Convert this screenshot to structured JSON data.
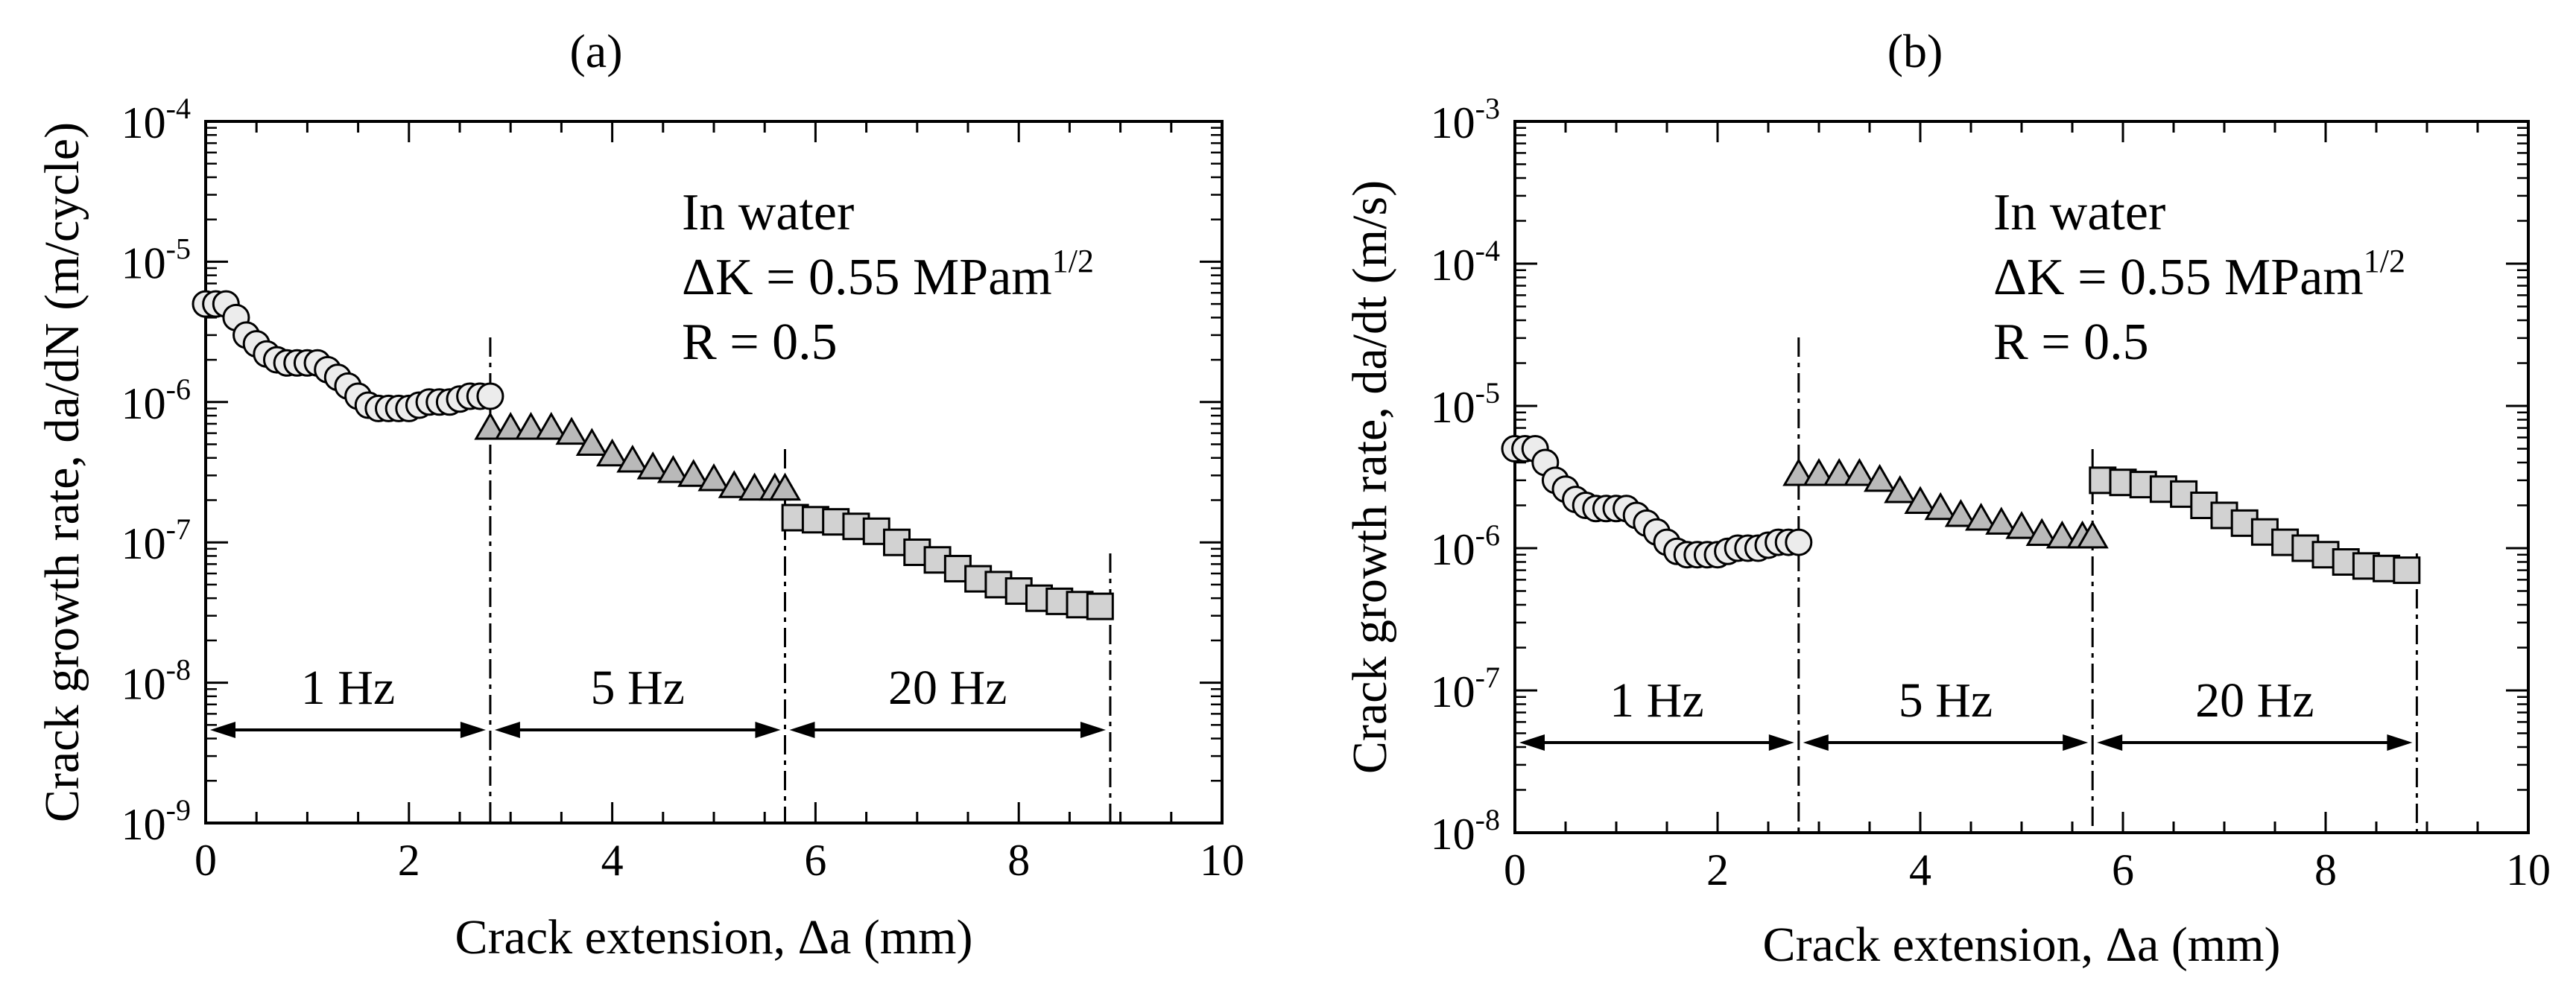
{
  "chart_data": [
    {
      "type": "scatter",
      "panel": "(a)",
      "title": "(a)",
      "xlabel": "Crack extension, Δa (mm)",
      "ylabel": "Crack growth rate, da/dN (m/cycle)",
      "x_ticks": [
        0,
        2,
        4,
        6,
        8,
        10
      ],
      "xlim": [
        0,
        10
      ],
      "ylim_log10": [
        -9,
        -4
      ],
      "y_tick_exponents": [
        -9,
        -8,
        -7,
        -6,
        -5,
        -4
      ],
      "annotation": [
        "In water",
        "ΔK = 0.55 MPam",
        "1/2",
        "R = 0.5"
      ],
      "boundaries": [
        2.8,
        5.7,
        8.9
      ],
      "frequency_labels": [
        {
          "label": "1 Hz",
          "from": 0,
          "to": 2.8
        },
        {
          "label": "5 Hz",
          "from": 2.8,
          "to": 5.7
        },
        {
          "label": "20 Hz",
          "from": 5.7,
          "to": 8.9
        }
      ],
      "series": [
        {
          "name": "1 Hz",
          "marker": "circle",
          "x": [
            0,
            0.1,
            0.2,
            0.3,
            0.4,
            0.5,
            0.6,
            0.7,
            0.8,
            0.9,
            1.0,
            1.1,
            1.2,
            1.3,
            1.4,
            1.5,
            1.6,
            1.7,
            1.8,
            1.9,
            2.0,
            2.1,
            2.2,
            2.3,
            2.4,
            2.5,
            2.6,
            2.7,
            2.8
          ],
          "y": [
            5e-06,
            5e-06,
            5e-06,
            4e-06,
            3e-06,
            2.6e-06,
            2.2e-06,
            2e-06,
            1.9e-06,
            1.9e-06,
            1.9e-06,
            1.9e-06,
            1.7e-06,
            1.5e-06,
            1.3e-06,
            1.1e-06,
            9.5e-07,
            9e-07,
            9e-07,
            9e-07,
            9e-07,
            9.5e-07,
            1e-06,
            1e-06,
            1e-06,
            1.05e-06,
            1.1e-06,
            1.1e-06,
            1.1e-06
          ]
        },
        {
          "name": "5 Hz",
          "marker": "triangle",
          "x": [
            2.8,
            3.0,
            3.2,
            3.4,
            3.6,
            3.8,
            4.0,
            4.2,
            4.4,
            4.6,
            4.8,
            5.0,
            5.2,
            5.4,
            5.6,
            5.7
          ],
          "y": [
            6.5e-07,
            6.5e-07,
            6.5e-07,
            6.5e-07,
            6e-07,
            5e-07,
            4.2e-07,
            3.8e-07,
            3.4e-07,
            3.2e-07,
            3e-07,
            2.8e-07,
            2.5e-07,
            2.4e-07,
            2.4e-07,
            2.4e-07
          ]
        },
        {
          "name": "20 Hz",
          "marker": "square",
          "x": [
            5.8,
            6.0,
            6.2,
            6.4,
            6.6,
            6.8,
            7.0,
            7.2,
            7.4,
            7.6,
            7.8,
            8.0,
            8.2,
            8.4,
            8.6,
            8.8
          ],
          "y": [
            1.5e-07,
            1.45e-07,
            1.4e-07,
            1.3e-07,
            1.2e-07,
            1e-07,
            8.5e-08,
            7.5e-08,
            6.5e-08,
            5.5e-08,
            5e-08,
            4.5e-08,
            4e-08,
            3.8e-08,
            3.6e-08,
            3.5e-08
          ]
        }
      ]
    },
    {
      "type": "scatter",
      "panel": "(b)",
      "title": "(b)",
      "xlabel": "Crack extension, Δa (mm)",
      "ylabel": "Crack growth rate, da/dt (m/s)",
      "x_ticks": [
        0,
        2,
        4,
        6,
        8,
        10
      ],
      "xlim": [
        0,
        10
      ],
      "ylim_log10": [
        -8,
        -3
      ],
      "y_tick_exponents": [
        -8,
        -7,
        -6,
        -5,
        -4,
        -3
      ],
      "annotation": [
        "In water",
        "ΔK = 0.55 MPam",
        "1/2",
        "R = 0.5"
      ],
      "boundaries": [
        2.8,
        5.7,
        8.9
      ],
      "frequency_labels": [
        {
          "label": "1 Hz",
          "from": 0,
          "to": 2.8
        },
        {
          "label": "5 Hz",
          "from": 2.8,
          "to": 5.7
        },
        {
          "label": "20 Hz",
          "from": 5.7,
          "to": 8.9
        }
      ],
      "series": [
        {
          "name": "1 Hz",
          "marker": "circle",
          "x": [
            0,
            0.1,
            0.2,
            0.3,
            0.4,
            0.5,
            0.6,
            0.7,
            0.8,
            0.9,
            1.0,
            1.1,
            1.2,
            1.3,
            1.4,
            1.5,
            1.6,
            1.7,
            1.8,
            1.9,
            2.0,
            2.1,
            2.2,
            2.3,
            2.4,
            2.5,
            2.6,
            2.7,
            2.8
          ],
          "y": [
            5e-06,
            5e-06,
            5e-06,
            4e-06,
            3e-06,
            2.6e-06,
            2.2e-06,
            2e-06,
            1.9e-06,
            1.9e-06,
            1.9e-06,
            1.9e-06,
            1.7e-06,
            1.5e-06,
            1.3e-06,
            1.1e-06,
            9.5e-07,
            9e-07,
            9e-07,
            9e-07,
            9e-07,
            9.5e-07,
            1e-06,
            1e-06,
            1e-06,
            1.05e-06,
            1.1e-06,
            1.1e-06,
            1.1e-06
          ]
        },
        {
          "name": "5 Hz",
          "marker": "triangle",
          "x": [
            2.8,
            3.0,
            3.2,
            3.4,
            3.6,
            3.8,
            4.0,
            4.2,
            4.4,
            4.6,
            4.8,
            5.0,
            5.2,
            5.4,
            5.6,
            5.7
          ],
          "y": [
            3.3e-06,
            3.3e-06,
            3.3e-06,
            3.3e-06,
            3e-06,
            2.5e-06,
            2.1e-06,
            1.9e-06,
            1.7e-06,
            1.6e-06,
            1.5e-06,
            1.4e-06,
            1.25e-06,
            1.2e-06,
            1.2e-06,
            1.2e-06
          ]
        },
        {
          "name": "20 Hz",
          "marker": "square",
          "x": [
            5.8,
            6.0,
            6.2,
            6.4,
            6.6,
            6.8,
            7.0,
            7.2,
            7.4,
            7.6,
            7.8,
            8.0,
            8.2,
            8.4,
            8.6,
            8.8
          ],
          "y": [
            3e-06,
            2.9e-06,
            2.8e-06,
            2.6e-06,
            2.4e-06,
            2e-06,
            1.7e-06,
            1.5e-06,
            1.3e-06,
            1.1e-06,
            1e-06,
            9e-07,
            8e-07,
            7.5e-07,
            7.2e-07,
            7e-07
          ]
        }
      ]
    }
  ]
}
